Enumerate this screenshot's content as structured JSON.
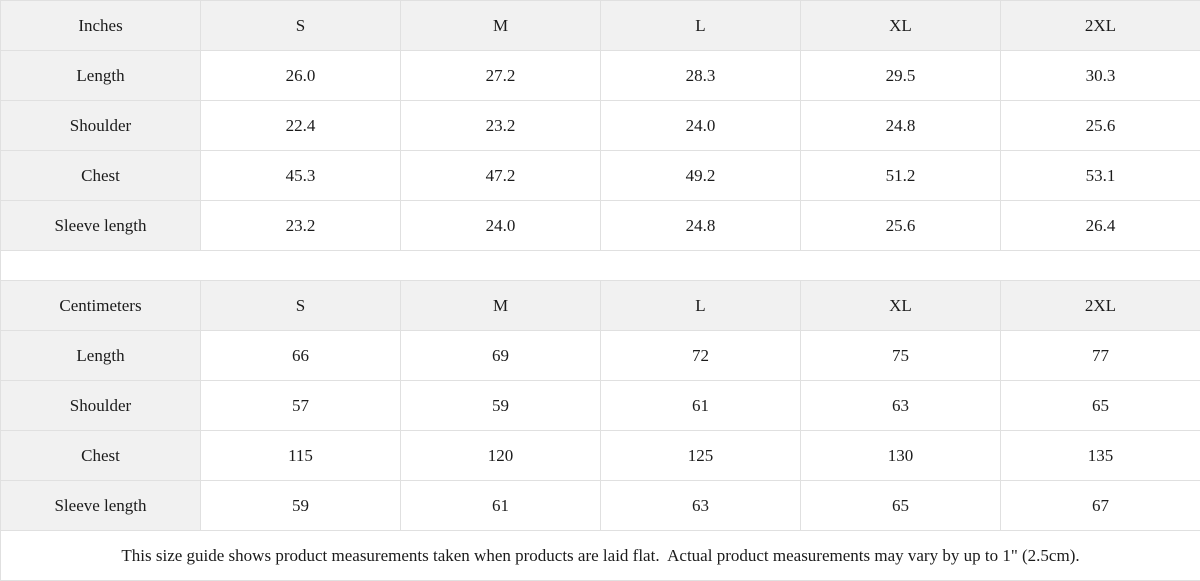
{
  "page": {
    "footer_note": "This size guide shows product measurements taken when products are laid flat.  Actual product measurements may vary by up to 1\" (2.5cm)."
  },
  "colors": {
    "header_bg": "#f1f1f1",
    "border": "#e0e0e0",
    "text": "#1b1b1b"
  },
  "size_chart": {
    "columns": [
      "S",
      "M",
      "L",
      "XL",
      "2XL"
    ],
    "sections": [
      {
        "unit_label": "Inches",
        "rows": [
          {
            "label": "Length",
            "values": [
              "26.0",
              "27.2",
              "28.3",
              "29.5",
              "30.3"
            ]
          },
          {
            "label": "Shoulder",
            "values": [
              "22.4",
              "23.2",
              "24.0",
              "24.8",
              "25.6"
            ]
          },
          {
            "label": "Chest",
            "values": [
              "45.3",
              "47.2",
              "49.2",
              "51.2",
              "53.1"
            ]
          },
          {
            "label": "Sleeve length",
            "values": [
              "23.2",
              "24.0",
              "24.8",
              "25.6",
              "26.4"
            ]
          }
        ]
      },
      {
        "unit_label": "Centimeters",
        "rows": [
          {
            "label": "Length",
            "values": [
              "66",
              "69",
              "72",
              "75",
              "77"
            ]
          },
          {
            "label": "Shoulder",
            "values": [
              "57",
              "59",
              "61",
              "63",
              "65"
            ]
          },
          {
            "label": "Chest",
            "values": [
              "115",
              "120",
              "125",
              "130",
              "135"
            ]
          },
          {
            "label": "Sleeve length",
            "values": [
              "59",
              "61",
              "63",
              "65",
              "67"
            ]
          }
        ]
      }
    ]
  }
}
